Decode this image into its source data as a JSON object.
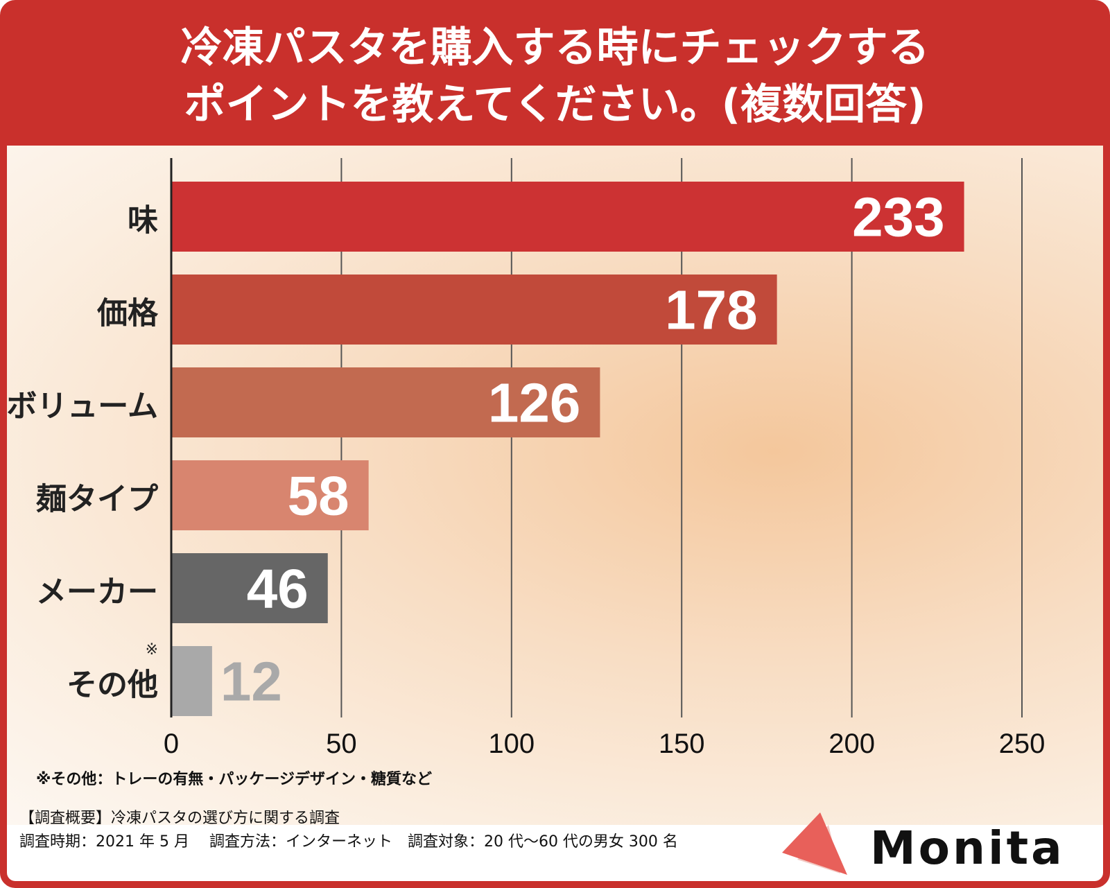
{
  "title_line1": "冷凍パスタを購入する時にチェックする",
  "title_line2": "ポイントを教えてください。(複数回答)",
  "chart_data": {
    "type": "bar",
    "orientation": "horizontal",
    "categories": [
      "味",
      "価格",
      "ボリューム",
      "麺タイプ",
      "メーカー",
      "その他"
    ],
    "values": [
      233,
      178,
      126,
      58,
      46,
      12
    ],
    "colors": [
      "#cc3233",
      "#c14a3a",
      "#c26a50",
      "#d8856f",
      "#666666",
      "#a9a9a9"
    ],
    "label_colors": [
      "#ffffff",
      "#ffffff",
      "#ffffff",
      "#ffffff",
      "#ffffff",
      "#a9a9a9"
    ],
    "category_marks": {
      "その他": "※"
    },
    "xlim": [
      0,
      250
    ],
    "xticks": [
      0,
      50,
      100,
      150,
      200,
      250
    ],
    "xtick_labels": [
      "0",
      "50",
      "100",
      "150",
      "200",
      "250"
    ],
    "grid": true
  },
  "footnote": "※その他：トレーの有無・パッケージデザイン・糖質など",
  "survey_summary": "【調査概要】冷凍パスタの選び方に関する調査",
  "survey_details": "調査時期：2021 年 5 月　 調査方法：インターネット　調査対象：20 代～60 代の男女 300 名",
  "logo_text": "Monita"
}
